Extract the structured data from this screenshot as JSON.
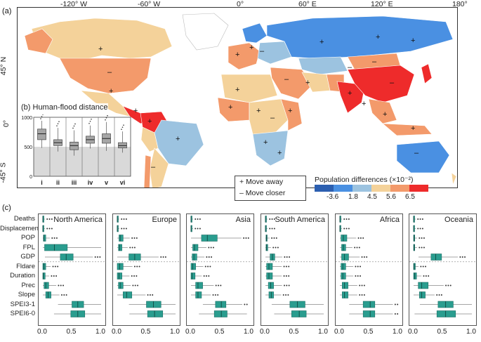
{
  "panel_a": {
    "label": "(a)",
    "lon_ticks": [
      "-120° W",
      "-60° W",
      "0°",
      "60° E",
      "120° E",
      "180°"
    ],
    "lat_ticks": [
      "45° N",
      "0°",
      "-45° S"
    ],
    "move_legend": {
      "plus": "+",
      "plus_label": "Move away",
      "minus": "–",
      "minus_label": "Move closer"
    },
    "pop_legend": {
      "title": "Population differences (×10⁻²)",
      "ticks": [
        "-3.6",
        "1.8",
        "4.5",
        "5.6",
        "6.5"
      ],
      "colors": [
        "#2c5fb0",
        "#4a90e2",
        "#9cc3e0",
        "#f4d29a",
        "#f39a6b",
        "#ee2b2b"
      ]
    }
  },
  "panel_b": {
    "label": "(b) Human-flood distance",
    "y_ticks": [
      "1000",
      "500",
      "0"
    ],
    "categories": [
      "i",
      "ii",
      "iii",
      "iv",
      "v",
      "vi"
    ]
  },
  "panel_c": {
    "label": "(c)",
    "rows": [
      "Deaths",
      "Displacement",
      "POP",
      "FPL",
      "GDP",
      "Fldare",
      "Duration",
      "Prec",
      "Slope",
      "SPEI3-1",
      "SPEI6-0"
    ],
    "x_ticks": [
      "0.0",
      "0.5",
      "1.0"
    ],
    "regions": [
      "North America",
      "Europe",
      "Asia",
      "South America",
      "Africa",
      "Oceania"
    ]
  },
  "chart_data": [
    {
      "type": "box",
      "title": "(b) Human-flood distance",
      "categories": [
        "i",
        "ii",
        "iii",
        "iv",
        "v",
        "vi"
      ],
      "ylim": [
        0,
        1000
      ],
      "series": [
        {
          "name": "distance",
          "median": [
            720,
            570,
            520,
            620,
            640,
            520
          ],
          "q1": [
            620,
            520,
            450,
            560,
            560,
            480
          ],
          "q3": [
            800,
            620,
            580,
            680,
            720,
            570
          ],
          "whisker_low": [
            480,
            420,
            350,
            470,
            430,
            400
          ],
          "whisker_high": [
            940,
            820,
            780,
            860,
            920,
            760
          ]
        }
      ]
    },
    {
      "type": "box",
      "title": "North America",
      "categories": [
        "Deaths",
        "Displacement",
        "POP",
        "FPL",
        "GDP",
        "Fldare",
        "Duration",
        "Prec",
        "Slope",
        "SPEI3-1",
        "SPEI6-0"
      ],
      "xlim": [
        0,
        1
      ],
      "series": [
        {
          "name": "importance",
          "q1": [
            0.0,
            0.0,
            0.01,
            0.03,
            0.3,
            0.0,
            0.0,
            0.02,
            0.05,
            0.5,
            0.48
          ],
          "q3": [
            0.01,
            0.01,
            0.05,
            0.42,
            0.52,
            0.05,
            0.04,
            0.1,
            0.14,
            0.7,
            0.72
          ],
          "median": [
            0.0,
            0.0,
            0.02,
            0.2,
            0.4,
            0.02,
            0.01,
            0.05,
            0.09,
            0.6,
            0.6
          ]
        }
      ]
    },
    {
      "type": "box",
      "title": "Europe",
      "categories": [
        "Deaths",
        "Displacement",
        "POP",
        "FPL",
        "GDP",
        "Fldare",
        "Duration",
        "Prec",
        "Slope",
        "SPEI3-1",
        "SPEI6-0"
      ],
      "xlim": [
        0,
        1
      ],
      "series": [
        {
          "name": "importance",
          "q1": [
            0.0,
            0.0,
            0.03,
            0.02,
            0.2,
            0.0,
            0.0,
            0.02,
            0.1,
            0.5,
            0.52
          ],
          "q3": [
            0.01,
            0.01,
            0.1,
            0.08,
            0.4,
            0.1,
            0.08,
            0.1,
            0.25,
            0.75,
            0.78
          ],
          "median": [
            0.0,
            0.0,
            0.05,
            0.04,
            0.3,
            0.04,
            0.03,
            0.05,
            0.16,
            0.62,
            0.64
          ]
        }
      ]
    },
    {
      "type": "box",
      "title": "Asia",
      "categories": [
        "Deaths",
        "Displacement",
        "POP",
        "FPL",
        "GDP",
        "Fldare",
        "Duration",
        "Prec",
        "Slope",
        "SPEI3-1",
        "SPEI6-0"
      ],
      "xlim": [
        0,
        1
      ],
      "series": [
        {
          "name": "importance",
          "q1": [
            0.0,
            0.0,
            0.18,
            0.03,
            0.02,
            0.0,
            0.0,
            0.08,
            0.08,
            0.42,
            0.4
          ],
          "q3": [
            0.01,
            0.01,
            0.45,
            0.12,
            0.1,
            0.08,
            0.07,
            0.2,
            0.18,
            0.6,
            0.62
          ],
          "median": [
            0.0,
            0.0,
            0.28,
            0.06,
            0.05,
            0.03,
            0.02,
            0.12,
            0.12,
            0.52,
            0.52
          ]
        }
      ]
    },
    {
      "type": "box",
      "title": "South America",
      "categories": [
        "Deaths",
        "Displacement",
        "POP",
        "FPL",
        "GDP",
        "Fldare",
        "Duration",
        "Prec",
        "Slope",
        "SPEI3-1",
        "SPEI6-0"
      ],
      "xlim": [
        0,
        1
      ],
      "series": [
        {
          "name": "importance",
          "q1": [
            0.0,
            0.0,
            0.01,
            0.01,
            0.08,
            0.02,
            0.02,
            0.05,
            0.06,
            0.42,
            0.45
          ],
          "q3": [
            0.01,
            0.01,
            0.03,
            0.04,
            0.16,
            0.12,
            0.12,
            0.14,
            0.14,
            0.68,
            0.7
          ],
          "median": [
            0.0,
            0.0,
            0.02,
            0.02,
            0.12,
            0.06,
            0.06,
            0.09,
            0.1,
            0.55,
            0.58
          ]
        }
      ]
    },
    {
      "type": "box",
      "title": "Africa",
      "categories": [
        "Deaths",
        "Displacement",
        "POP",
        "FPL",
        "GDP",
        "Fldare",
        "Duration",
        "Prec",
        "Slope",
        "SPEI3-1",
        "SPEI6-0"
      ],
      "xlim": [
        0,
        1
      ],
      "series": [
        {
          "name": "importance",
          "q1": [
            0.0,
            0.0,
            0.02,
            0.03,
            0.03,
            0.02,
            0.02,
            0.04,
            0.04,
            0.4,
            0.4
          ],
          "q3": [
            0.01,
            0.01,
            0.12,
            0.1,
            0.15,
            0.1,
            0.1,
            0.14,
            0.14,
            0.6,
            0.6
          ],
          "median": [
            0.0,
            0.0,
            0.06,
            0.06,
            0.08,
            0.05,
            0.05,
            0.08,
            0.08,
            0.52,
            0.52
          ]
        }
      ]
    },
    {
      "type": "box",
      "title": "Oceania",
      "categories": [
        "Deaths",
        "Displacement",
        "POP",
        "FPL",
        "GDP",
        "Fldare",
        "Duration",
        "Prec",
        "Slope",
        "SPEI3-1",
        "SPEI6-0"
      ],
      "xlim": [
        0,
        1
      ],
      "series": [
        {
          "name": "importance",
          "q1": [
            0.0,
            0.0,
            0.0,
            0.0,
            0.3,
            0.0,
            0.0,
            0.08,
            0.1,
            0.42,
            0.4
          ],
          "q3": [
            0.01,
            0.01,
            0.02,
            0.02,
            0.48,
            0.03,
            0.05,
            0.25,
            0.2,
            0.68,
            0.72
          ],
          "median": [
            0.0,
            0.0,
            0.01,
            0.01,
            0.38,
            0.01,
            0.02,
            0.14,
            0.14,
            0.55,
            0.55
          ]
        }
      ]
    }
  ]
}
